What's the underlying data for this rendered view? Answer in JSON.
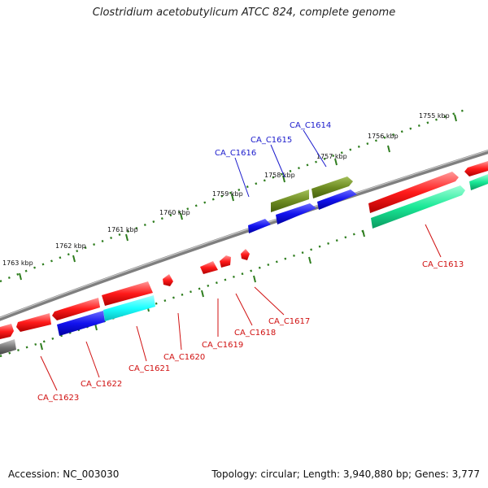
{
  "title": "Clostridium acetobutylicum ATCC 824, complete genome",
  "footer": {
    "accession": "Accession: NC_003030",
    "summary": "Topology: circular; Length: 3,940,880 bp; Genes: 3,777"
  },
  "colors": {
    "backbone": "#7f7f7f",
    "tick": "#2e7d1e",
    "blue_label": "#1a1acc",
    "red_label": "#d01010",
    "red": "#ff1a1a",
    "blue": "#1212ee",
    "olive": "#6e8c22",
    "cyan": "#19ffff",
    "green": "#19e896",
    "gray": "#7a7a7a"
  },
  "scale_labels": [
    "1755 kbp",
    "1756 kbp",
    "1757 kbp",
    "1758 kbp",
    "1759 kbp",
    "1760 kbp",
    "1761 kbp",
    "1762 kbp",
    "1763 kbp"
  ],
  "top_labels": [
    "CA_C1614",
    "CA_C1615",
    "CA_C1616"
  ],
  "bottom_labels": [
    "CA_C1613",
    "CA_C1617",
    "CA_C1618",
    "CA_C1619",
    "CA_C1620",
    "CA_C1621",
    "CA_C1622",
    "CA_C1623"
  ]
}
